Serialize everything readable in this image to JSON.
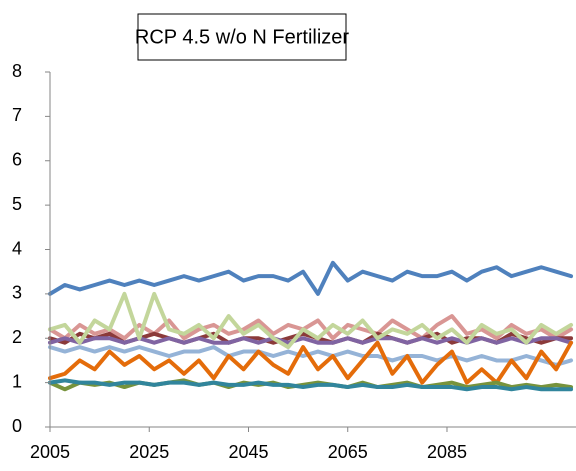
{
  "chart_data": {
    "type": "line",
    "title": "RCP 4.5 w/o N Fertilizer",
    "x": [
      2005,
      2008,
      2011,
      2014,
      2017,
      2020,
      2023,
      2026,
      2029,
      2032,
      2035,
      2038,
      2041,
      2044,
      2047,
      2050,
      2053,
      2056,
      2059,
      2062,
      2065,
      2068,
      2071,
      2074,
      2077,
      2080,
      2083,
      2086,
      2089,
      2092,
      2095,
      2098,
      2101,
      2104,
      2107,
      2110
    ],
    "xlim": [
      2005,
      2111
    ],
    "xticks": [
      2005,
      2025,
      2045,
      2065,
      2085
    ],
    "ylim": [
      0,
      8
    ],
    "yticks": [
      0,
      1,
      2,
      3,
      4,
      5,
      6,
      7,
      8
    ],
    "series": [
      {
        "color": "#d99694",
        "values": [
          2.2,
          2.0,
          2.3,
          2.1,
          2.2,
          2.0,
          2.3,
          2.1,
          2.4,
          2.0,
          2.2,
          2.3,
          2.1,
          2.2,
          2.4,
          2.1,
          2.3,
          2.2,
          2.4,
          2.0,
          2.3,
          2.2,
          2.1,
          2.4,
          2.2,
          2.0,
          2.3,
          2.5,
          2.1,
          2.2,
          2.0,
          2.3,
          2.1,
          2.2,
          2.0,
          2.2
        ]
      },
      {
        "color": "#8b3a3a",
        "values": [
          2.0,
          1.9,
          2.1,
          2.0,
          2.1,
          1.9,
          2.0,
          2.1,
          2.0,
          1.9,
          2.0,
          2.1,
          1.9,
          2.0,
          2.0,
          1.9,
          2.0,
          2.1,
          2.0,
          1.9,
          2.0,
          1.9,
          2.1,
          2.0,
          1.9,
          2.0,
          2.1,
          1.9,
          2.0,
          2.0,
          1.9,
          2.1,
          2.0,
          1.9,
          2.0,
          2.0
        ]
      },
      {
        "color": "#8064a2",
        "values": [
          1.9,
          2.0,
          1.9,
          2.0,
          2.0,
          1.9,
          2.0,
          1.9,
          2.0,
          1.9,
          2.0,
          1.9,
          1.9,
          2.0,
          1.9,
          2.0,
          1.9,
          2.0,
          1.9,
          1.9,
          2.0,
          1.9,
          2.0,
          2.0,
          1.9,
          2.0,
          1.9,
          2.0,
          1.9,
          2.0,
          1.9,
          2.0,
          1.9,
          2.0,
          2.0,
          1.9
        ]
      },
      {
        "color": "#c3d69b",
        "values": [
          2.2,
          2.3,
          1.9,
          2.4,
          2.2,
          3.0,
          2.0,
          3.0,
          2.2,
          2.1,
          2.3,
          2.0,
          2.5,
          2.1,
          2.3,
          2.0,
          1.8,
          2.2,
          2.0,
          2.3,
          2.1,
          2.4,
          2.0,
          2.2,
          2.1,
          2.3,
          2.0,
          2.2,
          1.9,
          2.3,
          2.1,
          2.2,
          1.9,
          2.3,
          2.1,
          2.3
        ]
      },
      {
        "color": "#95b3d7",
        "values": [
          1.8,
          1.7,
          1.8,
          1.7,
          1.8,
          1.7,
          1.8,
          1.7,
          1.6,
          1.7,
          1.7,
          1.8,
          1.6,
          1.7,
          1.7,
          1.6,
          1.7,
          1.6,
          1.7,
          1.6,
          1.7,
          1.6,
          1.6,
          1.5,
          1.6,
          1.6,
          1.5,
          1.6,
          1.5,
          1.6,
          1.5,
          1.5,
          1.6,
          1.5,
          1.4,
          1.5
        ]
      },
      {
        "color": "#e46c0a",
        "values": [
          1.1,
          1.2,
          1.5,
          1.3,
          1.7,
          1.4,
          1.6,
          1.3,
          1.5,
          1.2,
          1.5,
          1.1,
          1.6,
          1.3,
          1.7,
          1.4,
          1.2,
          1.8,
          1.3,
          1.6,
          1.1,
          1.5,
          1.9,
          1.2,
          1.6,
          1.0,
          1.4,
          1.7,
          1.0,
          1.3,
          1.0,
          1.5,
          1.1,
          1.7,
          1.3,
          1.9
        ]
      },
      {
        "color": "#77933c",
        "values": [
          1.0,
          0.85,
          1.0,
          0.95,
          1.0,
          0.9,
          1.0,
          0.95,
          1.0,
          1.05,
          0.95,
          1.0,
          0.9,
          1.0,
          0.95,
          1.0,
          0.9,
          0.95,
          1.0,
          0.95,
          0.9,
          1.0,
          0.9,
          0.95,
          1.0,
          0.9,
          0.95,
          1.0,
          0.9,
          0.95,
          1.0,
          0.9,
          0.95,
          0.9,
          0.95,
          0.9
        ]
      },
      {
        "color": "#31859c",
        "values": [
          1.0,
          1.05,
          1.0,
          1.0,
          0.95,
          1.0,
          1.0,
          0.95,
          1.0,
          1.0,
          0.95,
          1.0,
          0.95,
          0.95,
          1.0,
          0.95,
          0.95,
          0.9,
          0.95,
          0.95,
          0.9,
          0.95,
          0.9,
          0.9,
          0.95,
          0.9,
          0.9,
          0.9,
          0.85,
          0.9,
          0.9,
          0.85,
          0.9,
          0.85,
          0.85,
          0.85
        ]
      },
      {
        "color": "#4f81bd",
        "values": [
          3.0,
          3.2,
          3.1,
          3.2,
          3.3,
          3.2,
          3.3,
          3.2,
          3.3,
          3.4,
          3.3,
          3.4,
          3.5,
          3.3,
          3.4,
          3.4,
          3.3,
          3.5,
          3.0,
          3.7,
          3.3,
          3.5,
          3.4,
          3.3,
          3.5,
          3.4,
          3.4,
          3.5,
          3.3,
          3.5,
          3.6,
          3.4,
          3.5,
          3.6,
          3.5,
          3.4
        ]
      }
    ]
  }
}
